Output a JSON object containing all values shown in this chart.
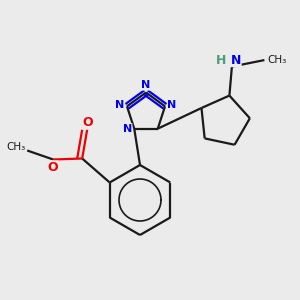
{
  "background_color": "#ebebeb",
  "bond_color": "#1a1a1a",
  "n_color": "#0000ee",
  "o_color": "#ee0000",
  "nh_color": "#4a9e7e",
  "line_width": 1.6,
  "figsize": [
    3.0,
    3.0
  ],
  "dpi": 100,
  "xlim": [
    -2.2,
    3.8
  ],
  "ylim": [
    -2.8,
    2.2
  ]
}
